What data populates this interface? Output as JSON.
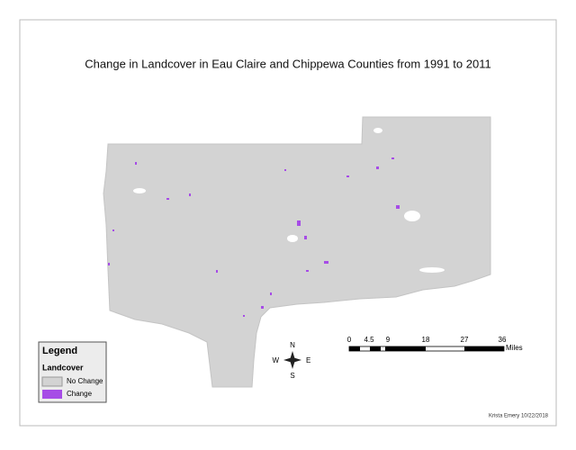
{
  "title": "Change in Landcover in Eau Claire and Chippewa Counties from 1991 to 2011",
  "legend": {
    "title": "Legend",
    "subtitle": "Landcover",
    "items": [
      "No Change",
      "Change"
    ]
  },
  "scale_bar": {
    "ticks": [
      "0",
      "4.5",
      "9",
      "18",
      "27",
      "36"
    ],
    "unit": "Miles"
  },
  "compass": {
    "n": "N",
    "e": "E",
    "s": "S",
    "w": "W"
  },
  "credit": "Krista Emery 10/22/2018"
}
